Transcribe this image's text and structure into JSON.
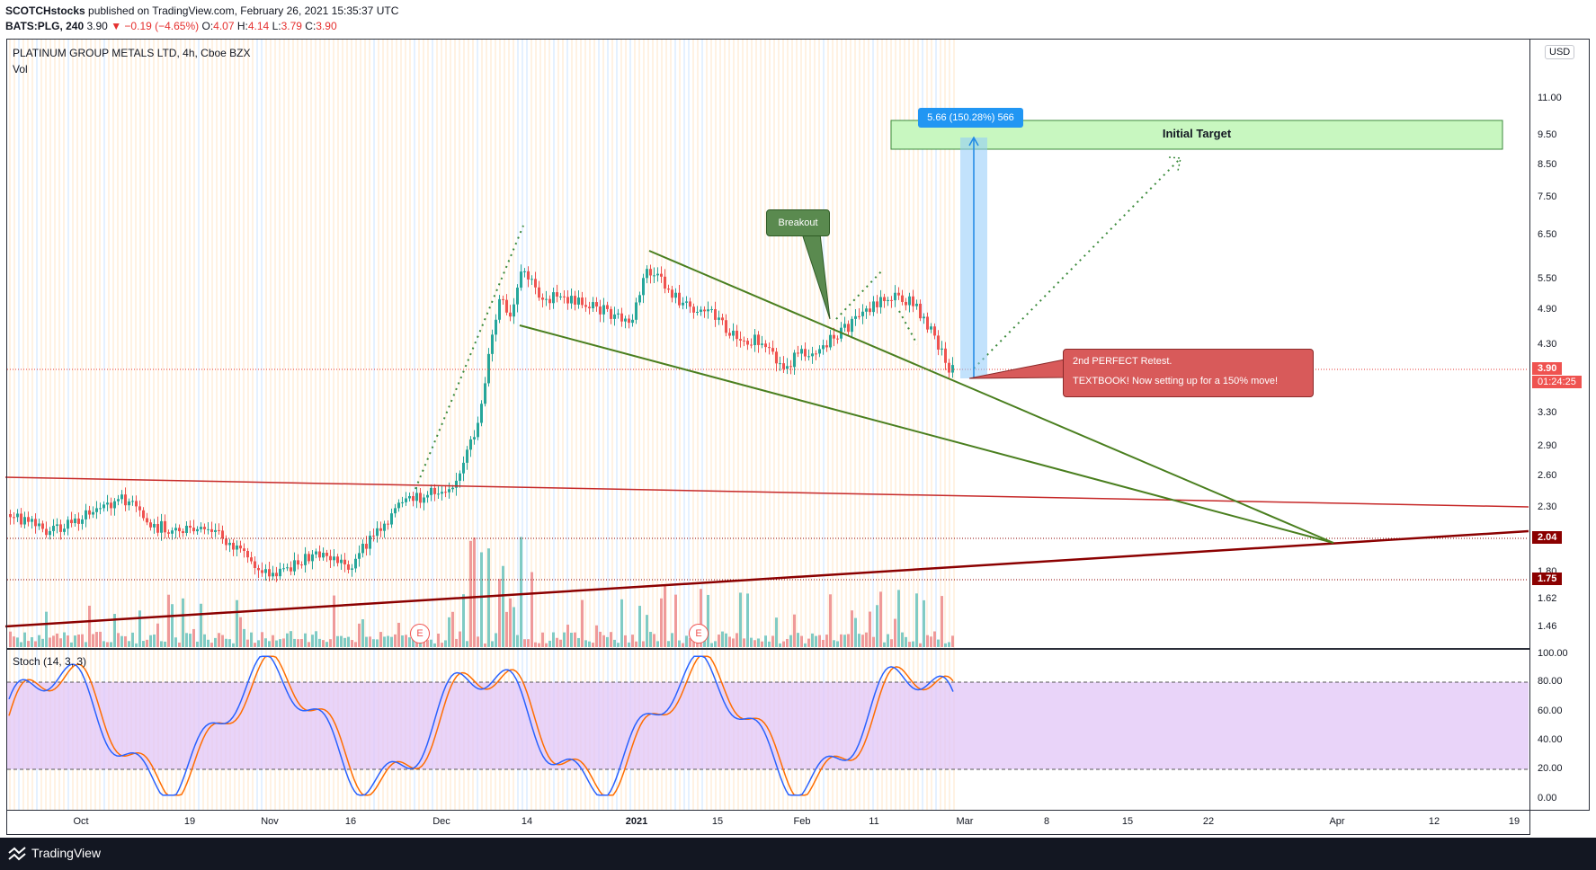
{
  "header": {
    "author": "SCOTCHstocks",
    "published_text": "published on TradingView.com, February 26, 2021 15:35:37 UTC",
    "ticker": "BATS:PLG, 240",
    "last": "3.90",
    "change": "−0.19 (−4.65%)",
    "o_label": "O:",
    "o": "4.07",
    "h_label": "H:",
    "h": "4.14",
    "l_label": "L:",
    "l": "3.79",
    "c_label": "C:",
    "c": "3.90"
  },
  "pane": {
    "symbol_title": "PLATINUM GROUP METALS LTD, 4h, Cboe BZX",
    "vol_label": "Vol",
    "stoch_label": "Stoch (14, 3, 3)",
    "currency": "USD"
  },
  "price_axis": [
    "11.00",
    "9.50",
    "8.50",
    "7.50",
    "6.50",
    "5.50",
    "4.90",
    "4.30",
    "3.30",
    "2.90",
    "2.60",
    "2.30",
    "1.80",
    "1.62",
    "1.46"
  ],
  "price_tags": {
    "last_price": "3.90",
    "countdown": "01:24:25",
    "level_1": "2.04",
    "level_2": "1.75"
  },
  "stoch_axis": [
    "100.00",
    "80.00",
    "60.00",
    "40.00",
    "20.00",
    "0.00"
  ],
  "time_axis": [
    "Oct",
    "19",
    "Nov",
    "16",
    "Dec",
    "14",
    "2021",
    "15",
    "Feb",
    "11",
    "Mar",
    "8",
    "15",
    "22",
    "Apr",
    "12",
    "19"
  ],
  "annotations": {
    "breakout": "Breakout",
    "initial_target": "Initial Target",
    "measure": "5.66 (150.28%) 566",
    "retest_line1": "2nd PERFECT Retest.",
    "retest_line2": "TEXTBOOK! Now setting up for a 150% move!",
    "earnings_marker": "E"
  },
  "colors": {
    "up": "#26a69a",
    "down": "#ef5350",
    "wedge": "#4a7f1f",
    "support": "#8b0000",
    "resistance": "#c62828",
    "target_fill": "#c8f7c0",
    "stoch_band": "#e1c6f7",
    "stoch_k": "#2962ff",
    "stoch_d": "#ff6d00",
    "callout_red": "#d85a5a",
    "callout_green": "#5a8a4f"
  },
  "footer": {
    "brand": "TradingView"
  }
}
